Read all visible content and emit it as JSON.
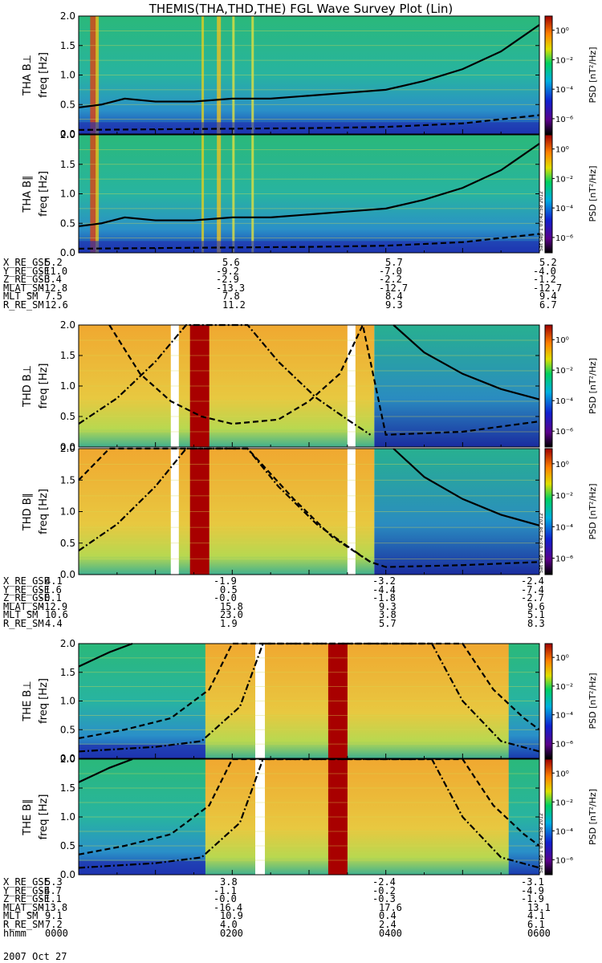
{
  "title": "THEMIS(THA,THD,THE) FGL Wave Survey Plot (Lin)",
  "colorbar": {
    "label_prefix": "PSD",
    "label_unit": "[nT²/Hz]",
    "ticks": [
      "10⁰",
      "10⁻²",
      "10⁻⁴",
      "10⁻⁶"
    ],
    "stamp": "Sat Sep 1 03:42:58 2012"
  },
  "chart_data": [
    {
      "type": "heatmap",
      "title": "THA B⊥",
      "ylabel": "freq [Hz]",
      "yticks": [
        "2.0",
        "1.5",
        "1.0",
        "0.5",
        "0.0"
      ],
      "ylim": [
        0,
        2.0
      ],
      "xlim": [
        0,
        6
      ],
      "lines": {
        "solid": [
          [
            0,
            0.45
          ],
          [
            0.3,
            0.5
          ],
          [
            0.6,
            0.6
          ],
          [
            1,
            0.55
          ],
          [
            1.5,
            0.55
          ],
          [
            2,
            0.6
          ],
          [
            2.5,
            0.6
          ],
          [
            3,
            0.65
          ],
          [
            3.5,
            0.7
          ],
          [
            4,
            0.75
          ],
          [
            4.5,
            0.9
          ],
          [
            5,
            1.1
          ],
          [
            5.5,
            1.4
          ],
          [
            6,
            1.85
          ]
        ],
        "dashed": [
          [
            0,
            0.07
          ],
          [
            1,
            0.08
          ],
          [
            2,
            0.09
          ],
          [
            3,
            0.1
          ],
          [
            4,
            0.12
          ],
          [
            5,
            0.18
          ],
          [
            6,
            0.32
          ]
        ]
      }
    },
    {
      "type": "heatmap",
      "title": "THA B∥",
      "ylabel": "freq [Hz]",
      "yticks": [
        "2.0",
        "1.5",
        "1.0",
        "0.5",
        "0.0"
      ],
      "ylim": [
        0,
        2.0
      ],
      "xlim": [
        0,
        6
      ],
      "lines": {
        "solid": [
          [
            0,
            0.45
          ],
          [
            0.3,
            0.5
          ],
          [
            0.6,
            0.6
          ],
          [
            1,
            0.55
          ],
          [
            1.5,
            0.55
          ],
          [
            2,
            0.6
          ],
          [
            2.5,
            0.6
          ],
          [
            3,
            0.65
          ],
          [
            3.5,
            0.7
          ],
          [
            4,
            0.75
          ],
          [
            4.5,
            0.9
          ],
          [
            5,
            1.1
          ],
          [
            5.5,
            1.4
          ],
          [
            6,
            1.85
          ]
        ],
        "dashed": [
          [
            0,
            0.07
          ],
          [
            1,
            0.08
          ],
          [
            2,
            0.09
          ],
          [
            3,
            0.1
          ],
          [
            4,
            0.12
          ],
          [
            5,
            0.18
          ],
          [
            6,
            0.32
          ]
        ]
      }
    },
    {
      "type": "heatmap",
      "title": "THD B⊥",
      "ylabel": "freq [Hz]",
      "yticks": [
        "2.0",
        "1.5",
        "1.0",
        "0.5",
        "0.0"
      ],
      "ylim": [
        0,
        2.0
      ],
      "xlim": [
        0,
        6
      ],
      "lines": {
        "solid": [
          [
            4.1,
            2.0
          ],
          [
            4.5,
            1.55
          ],
          [
            5,
            1.2
          ],
          [
            5.5,
            0.95
          ],
          [
            6,
            0.78
          ]
        ],
        "dashed": [
          [
            0.4,
            2.0
          ],
          [
            0.8,
            1.2
          ],
          [
            1.2,
            0.75
          ],
          [
            1.6,
            0.5
          ],
          [
            2.0,
            0.38
          ],
          [
            2.6,
            0.45
          ],
          [
            3.0,
            0.75
          ],
          [
            3.4,
            1.2
          ],
          [
            3.7,
            2.0
          ],
          [
            4.0,
            0.2
          ],
          [
            5,
            0.25
          ],
          [
            6,
            0.42
          ]
        ],
        "dashdot": [
          [
            0,
            0.38
          ],
          [
            0.5,
            0.8
          ],
          [
            1.0,
            1.4
          ],
          [
            1.4,
            2.0
          ],
          [
            2.2,
            2.0
          ],
          [
            2.6,
            1.4
          ],
          [
            3.1,
            0.8
          ],
          [
            3.5,
            0.45
          ],
          [
            3.8,
            0.2
          ]
        ]
      }
    },
    {
      "type": "heatmap",
      "title": "THD B∥",
      "ylabel": "freq [Hz]",
      "yticks": [
        "2.0",
        "1.5",
        "1.0",
        "0.5",
        "0.0"
      ],
      "ylim": [
        0,
        2.0
      ],
      "xlim": [
        0,
        6
      ],
      "lines": {
        "solid": [
          [
            4.1,
            2.0
          ],
          [
            4.5,
            1.55
          ],
          [
            5,
            1.2
          ],
          [
            5.5,
            0.95
          ],
          [
            6,
            0.78
          ]
        ],
        "dashed": [
          [
            0,
            1.5
          ],
          [
            0.4,
            2.0
          ],
          [
            2.2,
            2.0
          ],
          [
            2.8,
            1.2
          ],
          [
            3.3,
            0.6
          ],
          [
            3.8,
            0.2
          ],
          [
            4.0,
            0.12
          ],
          [
            5,
            0.15
          ],
          [
            6,
            0.2
          ]
        ],
        "dashdot": [
          [
            0,
            0.38
          ],
          [
            0.5,
            0.8
          ],
          [
            1.0,
            1.4
          ],
          [
            1.4,
            2.0
          ],
          [
            2.2,
            2.0
          ],
          [
            2.6,
            1.4
          ],
          [
            3.1,
            0.8
          ],
          [
            3.5,
            0.45
          ],
          [
            3.8,
            0.2
          ]
        ]
      }
    },
    {
      "type": "heatmap",
      "title": "THE B⊥",
      "ylabel": "freq [Hz]",
      "yticks": [
        "2.0",
        "1.5",
        "1.0",
        "0.5",
        "0.0"
      ],
      "ylim": [
        0,
        2.0
      ],
      "xlim": [
        0,
        6
      ],
      "lines": {
        "solid": [
          [
            0,
            1.6
          ],
          [
            0.4,
            1.85
          ],
          [
            0.7,
            2.0
          ]
        ],
        "dashed": [
          [
            0,
            0.35
          ],
          [
            0.6,
            0.5
          ],
          [
            1.2,
            0.7
          ],
          [
            1.7,
            1.2
          ],
          [
            2.0,
            2.0
          ],
          [
            5.0,
            2.0
          ],
          [
            5.4,
            1.2
          ],
          [
            5.8,
            0.7
          ],
          [
            6,
            0.5
          ]
        ],
        "dashdot": [
          [
            0,
            0.12
          ],
          [
            1,
            0.2
          ],
          [
            1.6,
            0.3
          ],
          [
            2.1,
            0.9
          ],
          [
            2.4,
            2.0
          ],
          [
            4.6,
            2.0
          ],
          [
            5.0,
            1.0
          ],
          [
            5.5,
            0.3
          ],
          [
            6,
            0.12
          ]
        ]
      }
    },
    {
      "type": "heatmap",
      "title": "THE B∥",
      "ylabel": "freq [Hz]",
      "yticks": [
        "2.0",
        "1.5",
        "1.0",
        "0.5",
        "0.0"
      ],
      "ylim": [
        0,
        2.0
      ],
      "xlim": [
        0,
        6
      ],
      "lines": {
        "solid": [
          [
            0,
            1.6
          ],
          [
            0.4,
            1.85
          ],
          [
            0.7,
            2.0
          ]
        ],
        "dashed": [
          [
            0,
            0.35
          ],
          [
            0.6,
            0.5
          ],
          [
            1.2,
            0.7
          ],
          [
            1.7,
            1.2
          ],
          [
            2.0,
            2.0
          ],
          [
            5.0,
            2.0
          ],
          [
            5.4,
            1.2
          ],
          [
            5.8,
            0.7
          ],
          [
            6,
            0.5
          ]
        ],
        "dashdot": [
          [
            0,
            0.12
          ],
          [
            1,
            0.2
          ],
          [
            1.6,
            0.3
          ],
          [
            2.1,
            0.9
          ],
          [
            2.4,
            2.0
          ],
          [
            4.6,
            2.0
          ],
          [
            5.0,
            1.0
          ],
          [
            5.5,
            0.3
          ],
          [
            6,
            0.12
          ]
        ]
      }
    }
  ],
  "ephemeris": [
    {
      "rows": [
        {
          "label": "X_RE_GSE",
          "values": [
            "5.2",
            "5.6",
            "5.7",
            "5.2"
          ]
        },
        {
          "label": "Y_RE_GSE",
          "values": [
            "-11.0",
            "-9.2",
            "-7.0",
            "-4.0"
          ]
        },
        {
          "label": "Z_RE_GSE",
          "values": [
            "-3.4",
            "-2.9",
            "-2.2",
            "-1.2"
          ]
        },
        {
          "label": "MLAT_SM",
          "values": [
            "-12.8",
            "-13.3",
            "-12.7",
            "-12.7"
          ]
        },
        {
          "label": "MLT_SM",
          "values": [
            "7.5",
            "7.8",
            "8.4",
            "9.4"
          ]
        },
        {
          "label": "R_RE_SM",
          "values": [
            "12.6",
            "11.2",
            "9.3",
            "6.7"
          ]
        }
      ]
    },
    {
      "rows": [
        {
          "label": "X_RE_GSE",
          "values": [
            "4.1",
            "-1.9",
            "-3.2",
            "-2.4"
          ]
        },
        {
          "label": "Y_RE_GSE",
          "values": [
            "-1.6",
            "0.5",
            "-4.4",
            "-7.4"
          ]
        },
        {
          "label": "Z_RE_GSE",
          "values": [
            "-0.1",
            "-0.0",
            "-1.8",
            "-2.7"
          ]
        },
        {
          "label": "MLAT_SM",
          "values": [
            "-12.9",
            "15.8",
            "9.3",
            "9.6"
          ]
        },
        {
          "label": "MLT_SM",
          "values": [
            "10.6",
            "23.0",
            "3.8",
            "5.1"
          ]
        },
        {
          "label": "R_RE_SM",
          "values": [
            "4.4",
            "1.9",
            "5.7",
            "8.3"
          ]
        }
      ]
    },
    {
      "rows": [
        {
          "label": "X_RE_GSE",
          "values": [
            "5.3",
            "3.8",
            "-2.4",
            "-3.1"
          ]
        },
        {
          "label": "Y_RE_GSE",
          "values": [
            "-4.7",
            "-1.1",
            "-0.2",
            "-4.9"
          ]
        },
        {
          "label": "Z_RE_GSE",
          "values": [
            "-1.1",
            "-0.0",
            "-0.3",
            "-1.9"
          ]
        },
        {
          "label": "MLAT_SM",
          "values": [
            "-13.8",
            "-16.4",
            "17.6",
            "13.1"
          ]
        },
        {
          "label": "MLT_SM",
          "values": [
            "9.1",
            "10.9",
            "0.4",
            "4.1"
          ]
        },
        {
          "label": "R_RE_SM",
          "values": [
            "7.2",
            "4.0",
            "2.4",
            "6.1"
          ]
        },
        {
          "label": "hhmm",
          "values": [
            "0000",
            "0200",
            "0400",
            "0600"
          ]
        }
      ]
    }
  ],
  "date_label": "2007 Oct 27"
}
